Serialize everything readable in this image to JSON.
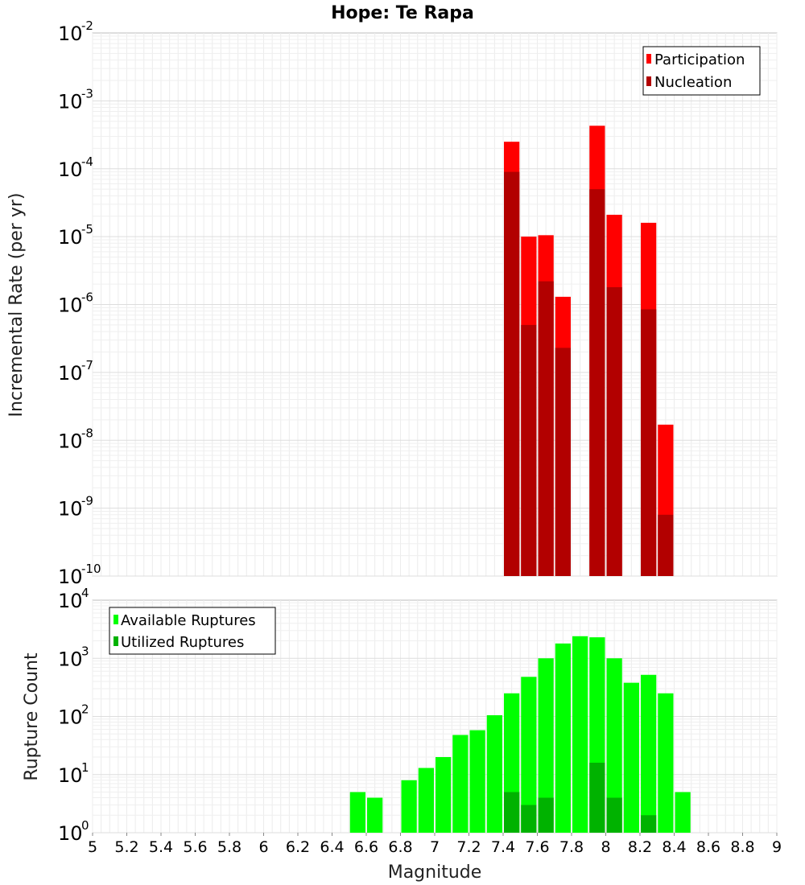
{
  "title": "Hope: Te Rapa",
  "xlabel": "Magnitude",
  "top": {
    "ylabel": "Incremental Rate (per yr)",
    "legend": [
      "Participation",
      "Nucleation"
    ]
  },
  "bottom": {
    "ylabel": "Rupture Count",
    "legend": [
      "Available Ruptures",
      "Utilized Ruptures"
    ]
  },
  "chart_data": [
    {
      "type": "bar",
      "title": "Hope: Te Rapa",
      "xlabel": "",
      "ylabel": "Incremental Rate (per yr)",
      "yscale": "log",
      "xlim": [
        5,
        9
      ],
      "ylim": [
        1e-10,
        0.01
      ],
      "grid": true,
      "legend_position": "top-right",
      "x": [
        7.45,
        7.55,
        7.65,
        7.75,
        7.95,
        8.05,
        8.25,
        8.35
      ],
      "series": [
        {
          "name": "Participation",
          "color": "#ff0000",
          "values": [
            0.00025,
            1e-05,
            1.05e-05,
            1.3e-06,
            0.00043,
            2.1e-05,
            1.6e-05,
            1.7e-08
          ]
        },
        {
          "name": "Nucleation",
          "color": "#b20000",
          "values": [
            9e-05,
            5e-07,
            2.2e-06,
            2.3e-07,
            5e-05,
            1.8e-06,
            8.5e-07,
            8e-10
          ]
        }
      ]
    },
    {
      "type": "bar",
      "xlabel": "Magnitude",
      "ylabel": "Rupture Count",
      "yscale": "log",
      "xlim": [
        5,
        9
      ],
      "ylim": [
        1,
        10000
      ],
      "grid": true,
      "legend_position": "top-left",
      "x": [
        6.55,
        6.65,
        6.75,
        6.85,
        6.95,
        7.05,
        7.15,
        7.25,
        7.35,
        7.45,
        7.55,
        7.65,
        7.75,
        7.85,
        7.95,
        8.05,
        8.15,
        8.25,
        8.35,
        8.45
      ],
      "series": [
        {
          "name": "Available Ruptures",
          "color": "#00ff00",
          "values": [
            5,
            4,
            1,
            8,
            13,
            20,
            48,
            58,
            105,
            250,
            480,
            1000,
            1800,
            2400,
            2300,
            1000,
            380,
            520,
            250,
            5
          ]
        },
        {
          "name": "Utilized Ruptures",
          "color": "#00b200",
          "values": [
            0,
            0,
            0,
            0,
            0,
            0,
            0,
            0,
            0,
            5,
            3,
            4,
            1,
            0,
            16,
            4,
            0,
            2,
            1,
            0
          ]
        }
      ],
      "xticks": [
        "5",
        "5.2",
        "5.4",
        "5.6",
        "5.8",
        "6",
        "6.2",
        "6.4",
        "6.6",
        "6.8",
        "7",
        "7.2",
        "7.4",
        "7.6",
        "7.8",
        "8",
        "8.2",
        "8.4",
        "8.6",
        "8.8",
        "9"
      ]
    }
  ]
}
